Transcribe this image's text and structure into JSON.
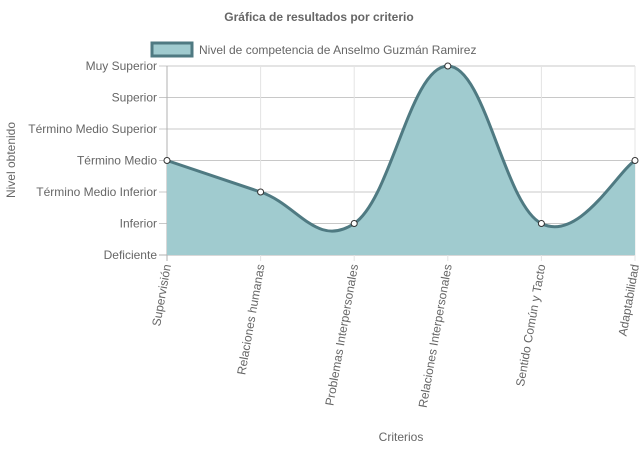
{
  "chart_data": {
    "type": "area",
    "title": "Gráfica de resultados por criterio",
    "xlabel": "Criterios",
    "ylabel": "Nivel obtenido",
    "categories": [
      "Supervisión",
      "Relaciones humanas",
      "Problemas Interpersonales",
      "Relaciones Interpersonales",
      "Sentido Común y Tacto",
      "Adaptabilidad"
    ],
    "y_levels": [
      "Deficiente",
      "Inferior",
      "Término Medio Inferior",
      "Término Medio",
      "Término Medio Superior",
      "Superior",
      "Muy Superior"
    ],
    "ylim": [
      0,
      6
    ],
    "grid": true,
    "legend_position": "top",
    "series": [
      {
        "name": "Nivel de competencia de Anselmo Guzmán Ramirez",
        "values": [
          3,
          2,
          1,
          6,
          1,
          3
        ],
        "value_labels": [
          "Término Medio",
          "Término Medio Inferior",
          "Inferior",
          "Muy Superior",
          "Inferior",
          "Término Medio"
        ],
        "fill_color": "#a0cbcf",
        "line_color": "#4f7a82"
      }
    ]
  }
}
